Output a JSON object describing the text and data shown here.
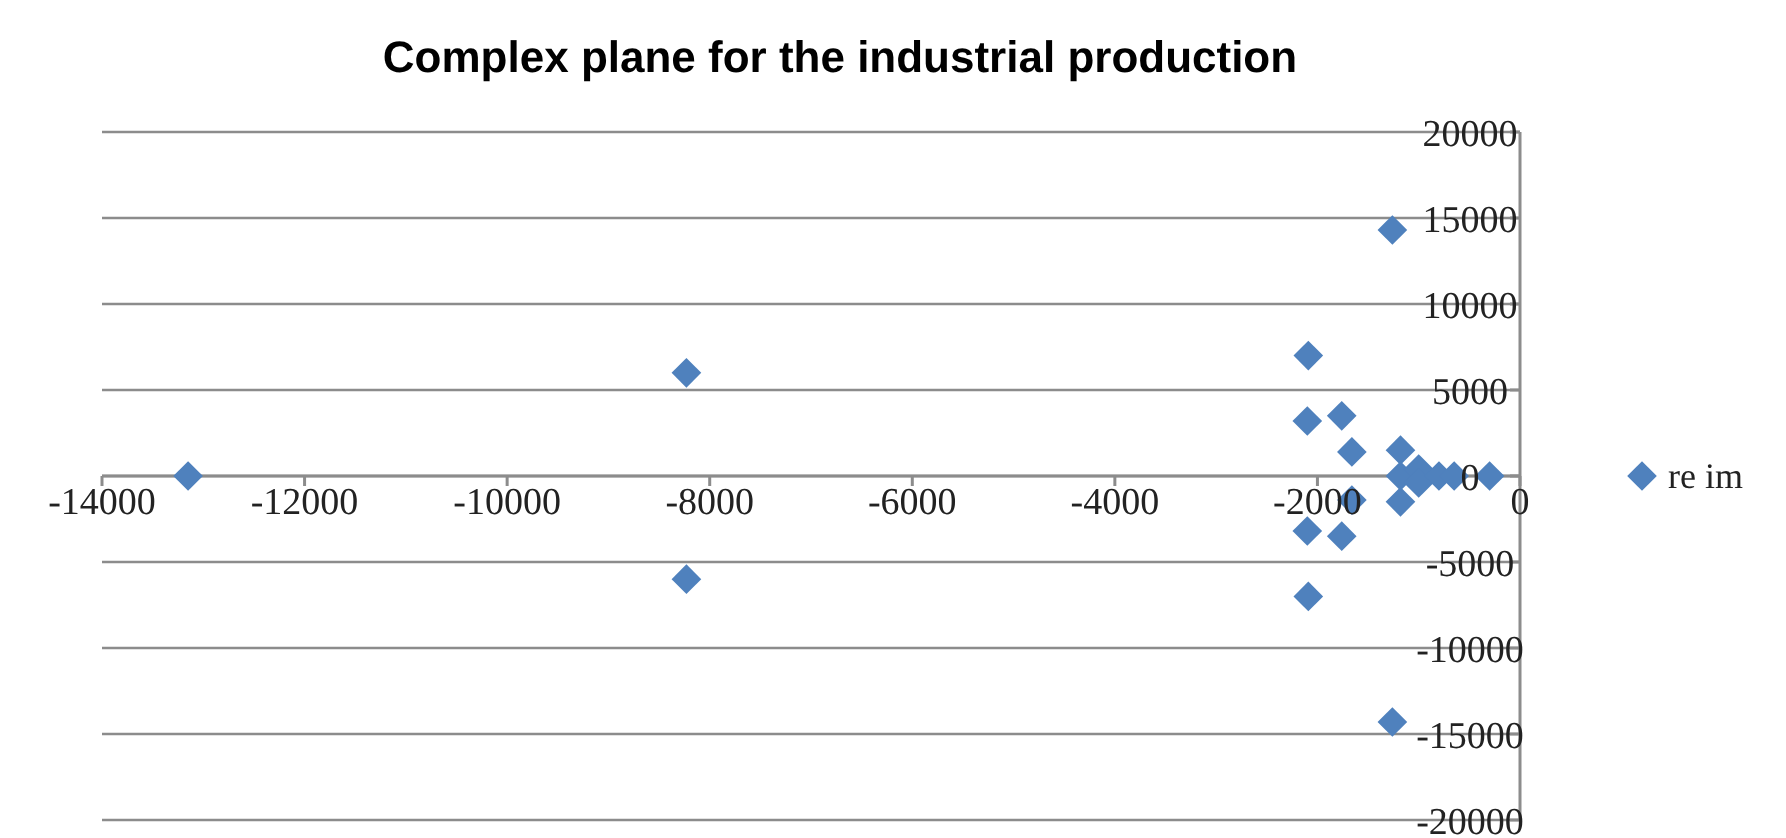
{
  "chart_data": {
    "type": "scatter",
    "title": "Complex plane for the industrial production",
    "series": [
      {
        "name": "re im",
        "color": "#4f81bd",
        "x": [
          -13150,
          -8230,
          -8230,
          -1260,
          -1260,
          -2090,
          -2090,
          -2100,
          -2100,
          -1760,
          -1760,
          -1660,
          -1660,
          -1180,
          -1180,
          -1180,
          -1000,
          -1000,
          -800,
          -650,
          -300
        ],
        "values": [
          0,
          6000,
          -6000,
          14300,
          -14300,
          7000,
          -7000,
          3200,
          -3200,
          3500,
          -3500,
          1400,
          -1400,
          1500,
          -1500,
          0,
          400,
          -400,
          0,
          0,
          0
        ]
      }
    ],
    "xlim": [
      -14000,
      0
    ],
    "xticks": [
      -14000,
      -12000,
      -10000,
      -8000,
      -6000,
      -4000,
      -2000,
      0
    ],
    "ylim": [
      -20000,
      20000
    ],
    "yticks": [
      -20000,
      -15000,
      -10000,
      -5000,
      0,
      5000,
      10000,
      15000,
      20000
    ],
    "grid": "y",
    "legend": "right",
    "marker": "diamond"
  }
}
